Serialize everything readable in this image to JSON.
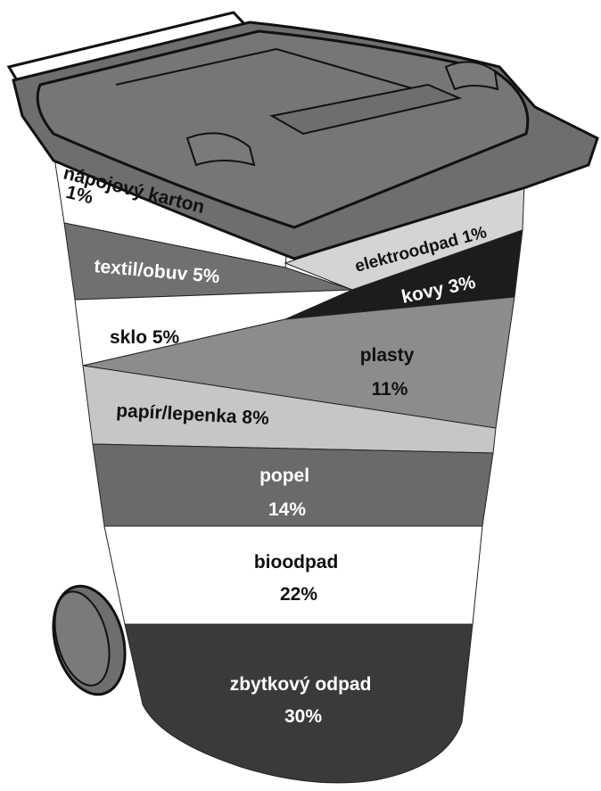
{
  "segments": [
    {
      "name": "nápojový karton",
      "share": "1%"
    },
    {
      "name": "elektroodpad",
      "share": "1%"
    },
    {
      "name": "textil/obuv",
      "share": "5%"
    },
    {
      "name": "kovy",
      "share": "3%"
    },
    {
      "name": "sklo",
      "share": "5%"
    },
    {
      "name": "plasty",
      "share": "11%"
    },
    {
      "name": "papír/lepenka",
      "share": "8%"
    },
    {
      "name": "popel",
      "share": "14%"
    },
    {
      "name": "bioodpad",
      "share": "22%"
    },
    {
      "name": "zbytkový odpad",
      "share": "30%"
    }
  ]
}
